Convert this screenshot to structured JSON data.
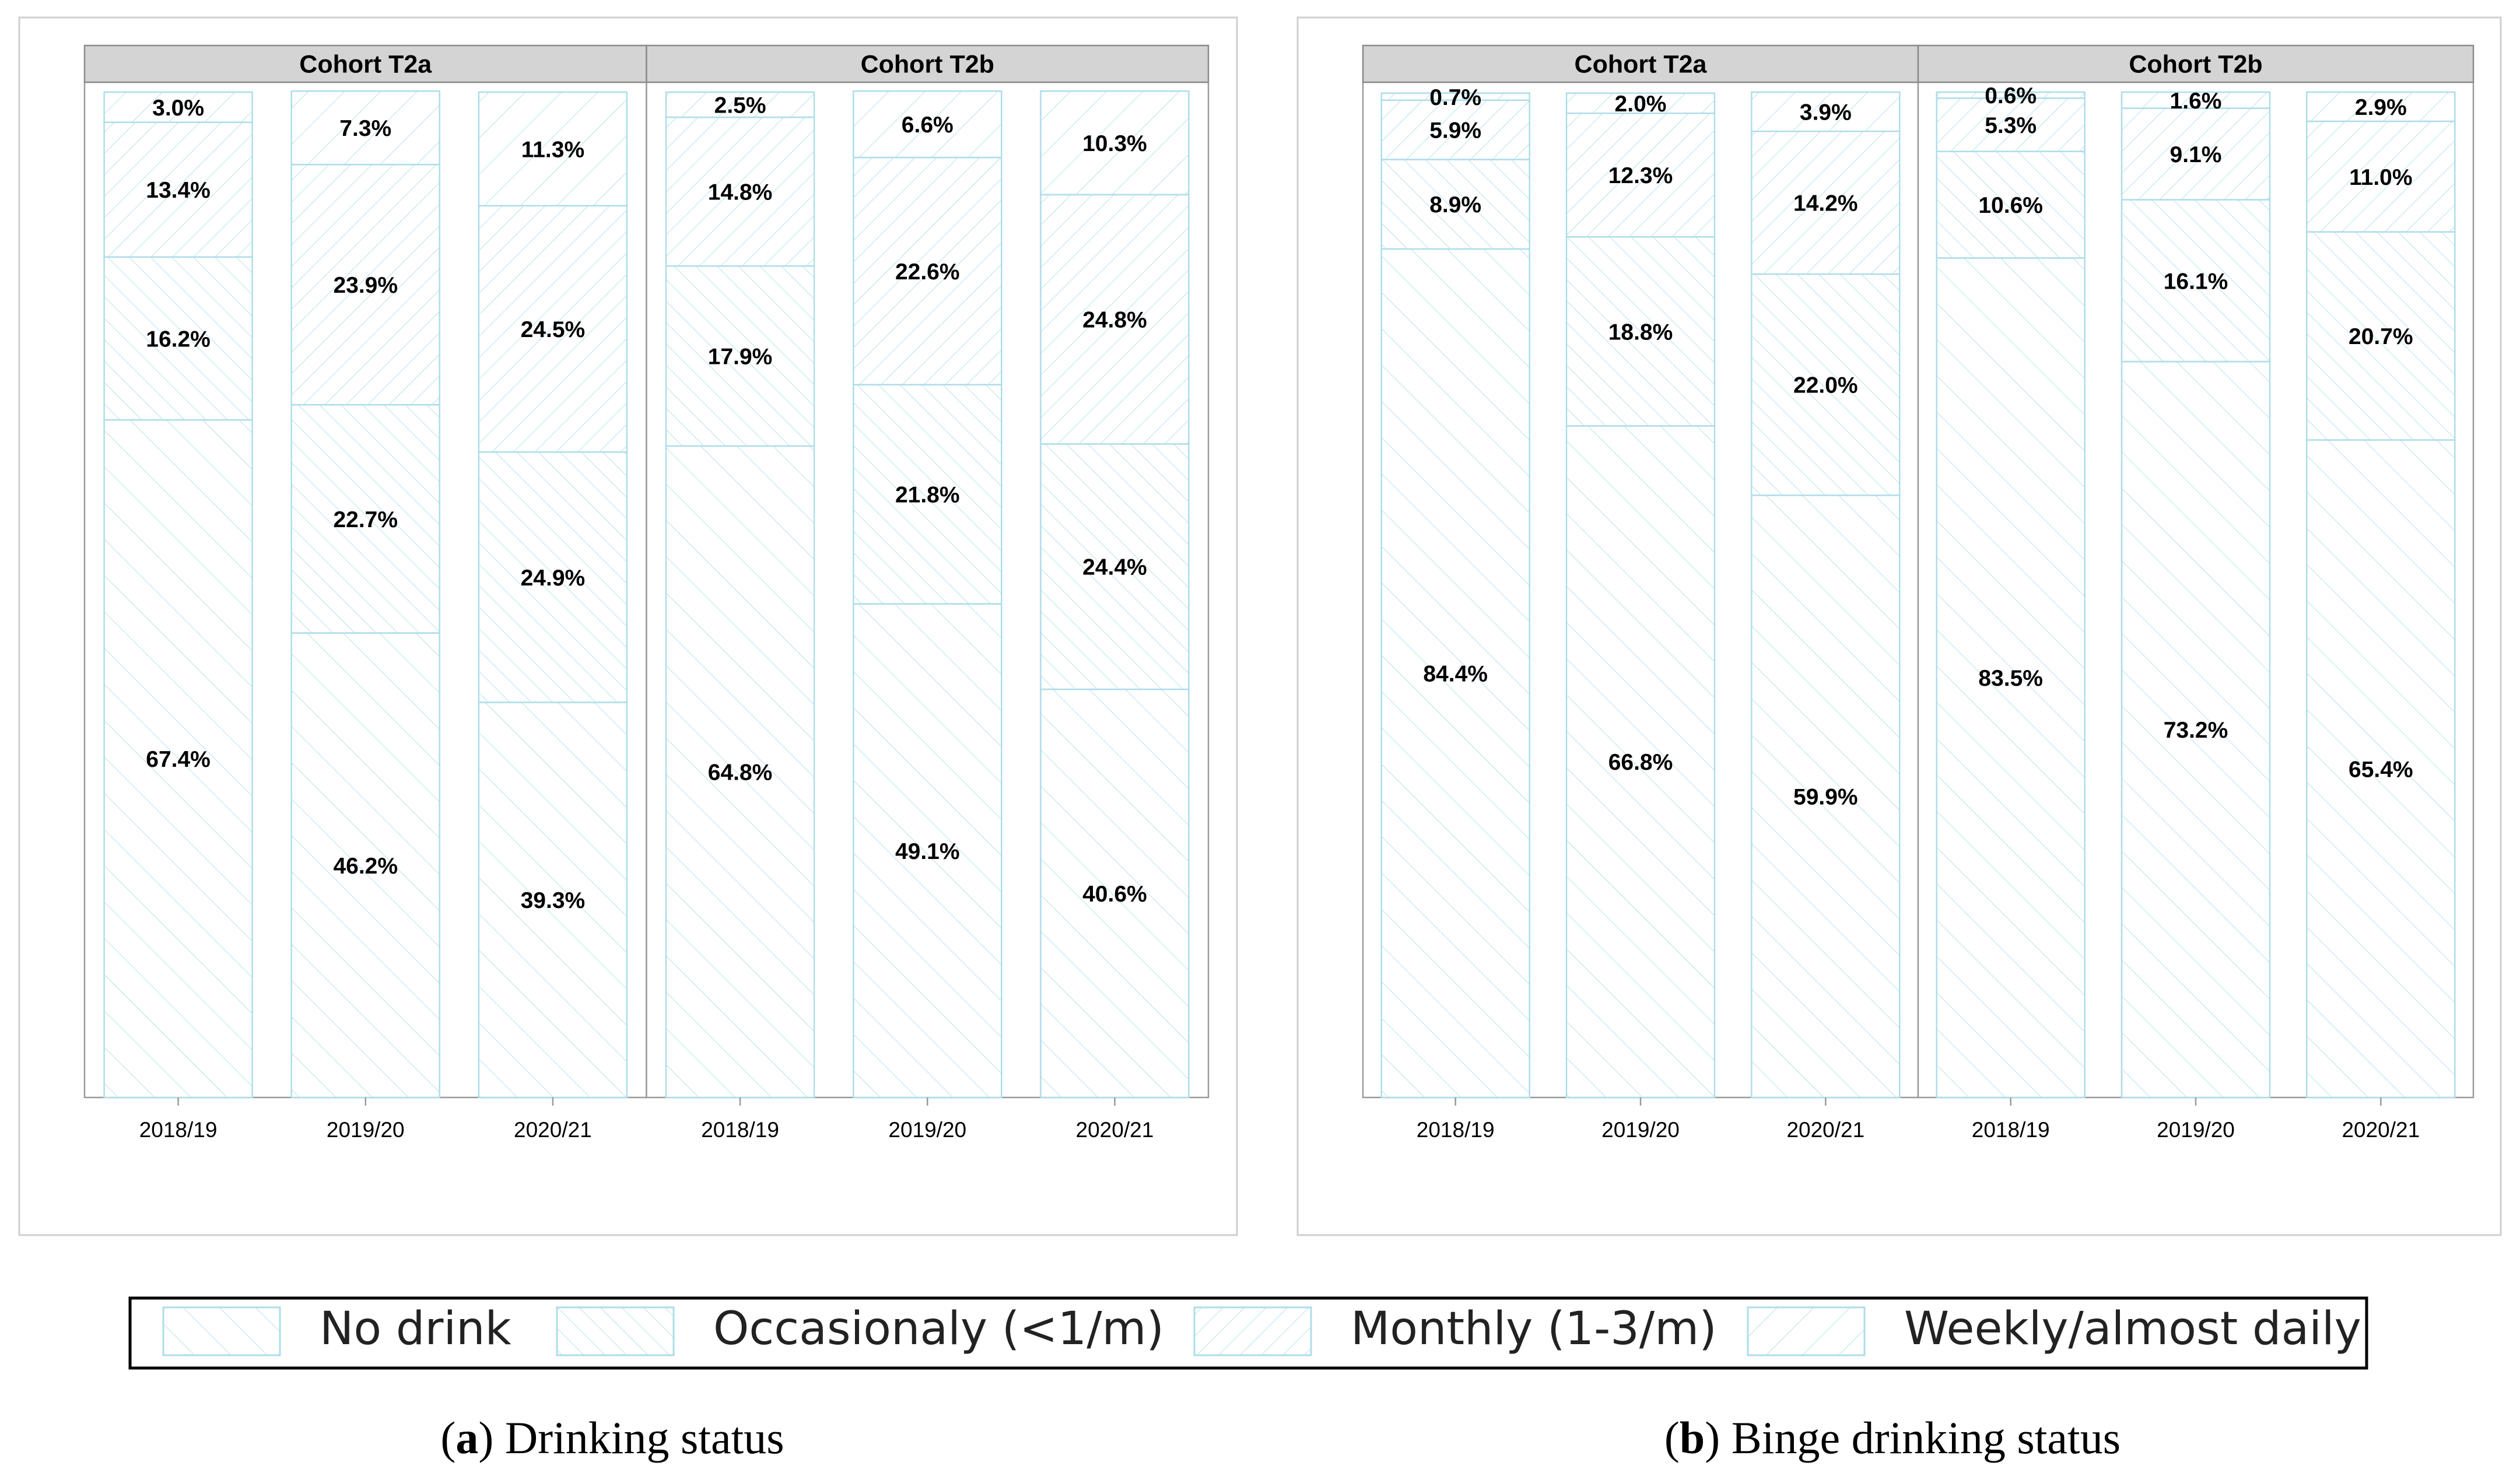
{
  "colors": {
    "bar_stroke": "#aedde9",
    "hatch": "#bfe3ee",
    "panel_border": "#cfcfcf",
    "strip_bg": "#d4d4d4",
    "strip_border": "#8a8a8a",
    "axis": "#9a9a9a",
    "text": "#000000"
  },
  "legend": {
    "items": [
      {
        "label": "No drink",
        "pattern": "hatch-no-drink"
      },
      {
        "label": "Occasionaly (<1/m)",
        "pattern": "hatch-occasionally"
      },
      {
        "label": "Monthly (1-3/m)",
        "pattern": "hatch-monthly"
      },
      {
        "label": "Weekly/almost daily",
        "pattern": "hatch-weekly"
      }
    ]
  },
  "chart_data": [
    {
      "type": "bar",
      "stacked": true,
      "title": "Drinking status",
      "caption_letter": "a",
      "categories": [
        "2018/19",
        "2019/20",
        "2020/21"
      ],
      "ylim": [
        0,
        100
      ],
      "value_suffix": "%",
      "series_names": [
        "No drink",
        "Occasionaly (<1/m)",
        "Monthly (1-3/m)",
        "Weekly/almost daily"
      ],
      "facets": [
        {
          "name": "Cohort T2a",
          "series": [
            {
              "name": "No drink",
              "values": [
                67.4,
                46.2,
                39.3
              ]
            },
            {
              "name": "Occasionaly (<1/m)",
              "values": [
                16.2,
                22.7,
                24.9
              ]
            },
            {
              "name": "Monthly (1-3/m)",
              "values": [
                13.4,
                23.9,
                24.5
              ]
            },
            {
              "name": "Weekly/almost daily",
              "values": [
                3.0,
                7.3,
                11.3
              ]
            }
          ]
        },
        {
          "name": "Cohort T2b",
          "series": [
            {
              "name": "No drink",
              "values": [
                64.8,
                49.1,
                40.6
              ]
            },
            {
              "name": "Occasionaly (<1/m)",
              "values": [
                17.9,
                21.8,
                24.4
              ]
            },
            {
              "name": "Monthly (1-3/m)",
              "values": [
                14.8,
                22.6,
                24.8
              ]
            },
            {
              "name": "Weekly/almost daily",
              "values": [
                2.5,
                6.6,
                10.3
              ]
            }
          ]
        }
      ]
    },
    {
      "type": "bar",
      "stacked": true,
      "title": "Binge drinking status",
      "caption_letter": "b",
      "categories": [
        "2018/19",
        "2019/20",
        "2020/21"
      ],
      "ylim": [
        0,
        100
      ],
      "value_suffix": "%",
      "series_names": [
        "No drink",
        "Occasionaly (<1/m)",
        "Monthly (1-3/m)",
        "Weekly/almost daily"
      ],
      "facets": [
        {
          "name": "Cohort T2a",
          "series": [
            {
              "name": "No drink",
              "values": [
                84.4,
                66.8,
                59.9
              ]
            },
            {
              "name": "Occasionaly (<1/m)",
              "values": [
                8.9,
                18.8,
                22.0
              ]
            },
            {
              "name": "Monthly (1-3/m)",
              "values": [
                5.9,
                12.3,
                14.2
              ]
            },
            {
              "name": "Weekly/almost daily",
              "values": [
                0.7,
                2.0,
                3.9
              ]
            }
          ]
        },
        {
          "name": "Cohort T2b",
          "series": [
            {
              "name": "No drink",
              "values": [
                83.5,
                73.2,
                65.4
              ]
            },
            {
              "name": "Occasionaly (<1/m)",
              "values": [
                10.6,
                16.1,
                20.7
              ]
            },
            {
              "name": "Monthly (1-3/m)",
              "values": [
                5.3,
                9.1,
                11.0
              ]
            },
            {
              "name": "Weekly/almost daily",
              "values": [
                0.6,
                1.6,
                2.9
              ]
            }
          ]
        }
      ]
    }
  ]
}
